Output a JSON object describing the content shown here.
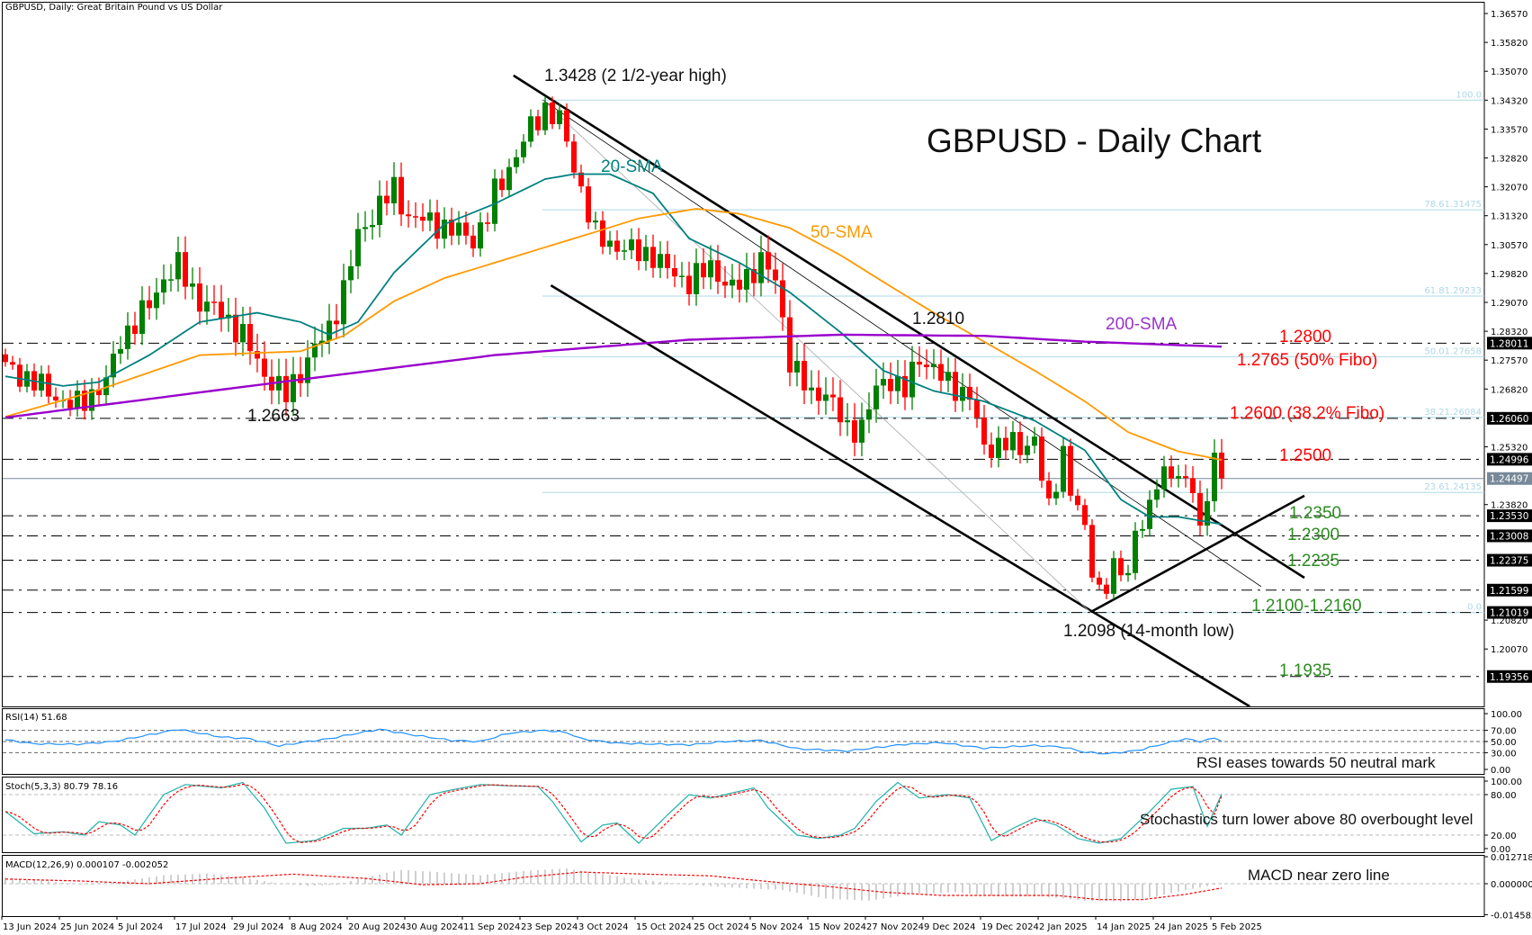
{
  "header": {
    "symbol_info": "GBPUSD, Daily:  Great Britain Pound vs US Dollar"
  },
  "chart_data": {
    "type": "candlestick",
    "title": "GBPUSD - Daily Chart",
    "colors": {
      "up": "#008000",
      "down": "#ff0000",
      "sma20": "#008080",
      "sma50": "#ff9900",
      "sma200": "#9900cc",
      "fibo": "#add8e6",
      "rsi": "#1e90ff",
      "stoch_main": "#20b2aa",
      "stoch_signal": "#ff0000",
      "macd_hist": "#c0c0c0",
      "macd_signal": "#ff0000"
    },
    "ylim": [
      1.1858,
      1.3657
    ],
    "y_ticks": [
      "1.36570",
      "1.35820",
      "1.35070",
      "1.34320",
      "1.33570",
      "1.32820",
      "1.32070",
      "1.31320",
      "1.30570",
      "1.29820",
      "1.29070",
      "1.28320",
      "1.27570",
      "1.26820",
      "1.25320",
      "1.23820",
      "1.20820",
      "1.20070"
    ],
    "x_ticks": [
      "13 Jun 2024",
      "25 Jun 2024",
      "5 Jul 2024",
      "17 Jul 2024",
      "29 Jul 2024",
      "8 Aug 2024",
      "20 Aug 2024",
      "30 Aug 2024",
      "11 Sep 2024",
      "23 Sep 2024",
      "3 Oct 2024",
      "15 Oct 2024",
      "25 Oct 2024",
      "5 Nov 2024",
      "15 Nov 2024",
      "27 Nov 2024",
      "9 Dec 2024",
      "19 Dec 2024",
      "2 Jan 2025",
      "14 Jan 2025",
      "24 Jan 2025",
      "5 Feb 2025"
    ],
    "bar_count": 170,
    "close_keypoints": [
      [
        0,
        1.274
      ],
      [
        4,
        1.27
      ],
      [
        8,
        1.265
      ],
      [
        10,
        1.264
      ],
      [
        14,
        1.27
      ],
      [
        16,
        1.281
      ],
      [
        20,
        1.29
      ],
      [
        22,
        1.297
      ],
      [
        24,
        1.3
      ],
      [
        27,
        1.291
      ],
      [
        30,
        1.288
      ],
      [
        33,
        1.282
      ],
      [
        36,
        1.272
      ],
      [
        39,
        1.2665
      ],
      [
        42,
        1.276
      ],
      [
        45,
        1.284
      ],
      [
        47,
        1.294
      ],
      [
        49,
        1.308
      ],
      [
        52,
        1.316
      ],
      [
        54,
        1.32
      ],
      [
        56,
        1.313
      ],
      [
        60,
        1.311
      ],
      [
        63,
        1.309
      ],
      [
        65,
        1.307
      ],
      [
        67,
        1.313
      ],
      [
        68,
        1.319
      ],
      [
        71,
        1.329
      ],
      [
        73,
        1.336
      ],
      [
        75,
        1.341
      ],
      [
        77,
        1.338
      ],
      [
        79,
        1.326
      ],
      [
        80,
        1.32
      ],
      [
        82,
        1.308
      ],
      [
        84,
        1.306
      ],
      [
        87,
        1.304
      ],
      [
        90,
        1.303
      ],
      [
        92,
        1.299
      ],
      [
        95,
        1.296
      ],
      [
        98,
        1.3
      ],
      [
        101,
        1.294
      ],
      [
        103,
        1.297
      ],
      [
        105,
        1.302
      ],
      [
        107,
        1.296
      ],
      [
        109,
        1.276
      ],
      [
        112,
        1.266
      ],
      [
        114,
        1.268
      ],
      [
        117,
        1.257
      ],
      [
        119,
        1.259
      ],
      [
        121,
        1.268
      ],
      [
        123,
        1.271
      ],
      [
        125,
        1.268
      ],
      [
        127,
        1.276
      ],
      [
        129,
        1.274
      ],
      [
        131,
        1.269
      ],
      [
        134,
        1.267
      ],
      [
        136,
        1.252
      ],
      [
        139,
        1.255
      ],
      [
        141,
        1.252
      ],
      [
        143,
        1.256
      ],
      [
        145,
        1.236
      ],
      [
        147,
        1.252
      ],
      [
        148,
        1.243
      ],
      [
        150,
        1.231
      ],
      [
        151,
        1.221
      ],
      [
        152,
        1.216
      ],
      [
        154,
        1.221
      ],
      [
        156,
        1.22
      ],
      [
        157,
        1.232
      ],
      [
        159,
        1.236
      ],
      [
        160,
        1.244
      ],
      [
        162,
        1.248
      ],
      [
        163,
        1.245
      ],
      [
        165,
        1.242
      ],
      [
        166,
        1.231
      ],
      [
        167,
        1.243
      ],
      [
        168,
        1.249
      ],
      [
        169,
        1.245
      ]
    ],
    "sma": [
      {
        "name": "20-SMA",
        "keypoints": [
          [
            0,
            1.2715
          ],
          [
            8,
            1.269
          ],
          [
            13,
            1.27
          ],
          [
            20,
            1.277
          ],
          [
            27,
            1.2856
          ],
          [
            35,
            1.288
          ],
          [
            41,
            1.2856
          ],
          [
            45,
            1.2823
          ],
          [
            49,
            1.2856
          ],
          [
            54,
            1.2984
          ],
          [
            61,
            1.311
          ],
          [
            68,
            1.3163
          ],
          [
            75,
            1.3227
          ],
          [
            79,
            1.324
          ],
          [
            84,
            1.324
          ],
          [
            90,
            1.319
          ],
          [
            95,
            1.3073
          ],
          [
            102,
            1.301
          ],
          [
            109,
            1.2933
          ],
          [
            116,
            1.283
          ],
          [
            122,
            1.273
          ],
          [
            129,
            1.2677
          ],
          [
            136,
            1.265
          ],
          [
            143,
            1.26
          ],
          [
            150,
            1.2523
          ],
          [
            155,
            1.2395
          ],
          [
            159,
            1.235
          ],
          [
            163,
            1.235
          ],
          [
            169,
            1.2331
          ]
        ]
      },
      {
        "name": "50-SMA",
        "keypoints": [
          [
            0,
            1.261
          ],
          [
            13,
            1.268
          ],
          [
            27,
            1.277
          ],
          [
            41,
            1.278
          ],
          [
            47,
            1.282
          ],
          [
            54,
            1.291
          ],
          [
            61,
            1.297
          ],
          [
            68,
            1.301
          ],
          [
            75,
            1.305
          ],
          [
            82,
            1.309
          ],
          [
            88,
            1.3125
          ],
          [
            96,
            1.315
          ],
          [
            102,
            1.3137
          ],
          [
            109,
            1.31
          ],
          [
            116,
            1.303
          ],
          [
            122,
            1.296
          ],
          [
            129,
            1.288
          ],
          [
            136,
            1.2805
          ],
          [
            143,
            1.273
          ],
          [
            150,
            1.265
          ],
          [
            156,
            1.257
          ],
          [
            163,
            1.252
          ],
          [
            169,
            1.2498
          ]
        ]
      },
      {
        "name": "200-SMA",
        "keypoints": [
          [
            0,
            1.2608
          ],
          [
            34,
            1.269
          ],
          [
            68,
            1.277
          ],
          [
            95,
            1.281
          ],
          [
            116,
            1.2823
          ],
          [
            136,
            1.282
          ],
          [
            150,
            1.2805
          ],
          [
            169,
            1.2792
          ]
        ]
      }
    ],
    "horizontal_levels": [
      "1.28011",
      "1.26060",
      "1.24996",
      "1.23530",
      "1.23008",
      "1.22375",
      "1.21599",
      "1.21019",
      "1.19356"
    ],
    "current_price": "1.24497",
    "fibonacci": [
      {
        "label": "100.0",
        "price": 1.3432
      },
      {
        "label": "78.61.31475",
        "price": 1.31475
      },
      {
        "label": "61.81.29233",
        "price": 1.29233
      },
      {
        "label": "50.01.27658",
        "price": 1.27658
      },
      {
        "label": "38.21.26084",
        "price": 1.26084
      },
      {
        "label": "23.61.24135",
        "price": 1.24135
      },
      {
        "label": "0.0",
        "price": 1.21019
      }
    ],
    "trendlines": [
      {
        "kind": "upper-channel",
        "from": [
          70.6,
          1.3496
        ],
        "to": [
          180.5,
          1.2192
        ],
        "weight": "thick"
      },
      {
        "kind": "lower-channel",
        "from": [
          75.8,
          1.2951
        ],
        "to": [
          172.9,
          1.1858
        ],
        "weight": "thick"
      },
      {
        "kind": "rising-support",
        "from": [
          150.8,
          1.2103
        ],
        "to": [
          180.5,
          1.2405
        ],
        "weight": "thick"
      },
      {
        "kind": "inner-trend",
        "from": [
          74.6,
          1.3433
        ],
        "to": [
          174.5,
          1.2169
        ],
        "weight": "thin"
      },
      {
        "kind": "fibo-diagonal",
        "from": [
          74.6,
          1.3433
        ],
        "to": [
          150.8,
          1.2102
        ],
        "weight": "grey"
      }
    ],
    "annotations": {
      "high": "1.3428 (2 1/2-year high)",
      "sma20": "20-SMA",
      "sma50": "50-SMA",
      "sma200": "200-SMA",
      "swing_1_2810": "1.2810",
      "low_1_2663": "1.2663",
      "res_1_2800": "1.2800",
      "res_1_2765": "1.2765 (50% Fibo)",
      "res_1_2600": "1.2600 (38.2% Fibo)",
      "res_1_2500": "1.2500",
      "sup_1_2350": "1.2350",
      "sup_1_2300": "1.2300",
      "sup_1_2235": "1.2235",
      "sup_zone": "1.2100-1.2160",
      "low_1_2098": "1.2098 (14-month low)",
      "sup_1_1935": "1.1935"
    },
    "rsi": {
      "label": "RSI(14) 51.68",
      "levels": [
        "100.00",
        "70.00",
        "50.00",
        "30.00",
        "0.00"
      ],
      "note": "RSI eases towards 50 neutral mark",
      "keypoints": [
        [
          0,
          53
        ],
        [
          4,
          46
        ],
        [
          10,
          45
        ],
        [
          15,
          50
        ],
        [
          20,
          62
        ],
        [
          24,
          72
        ],
        [
          30,
          58
        ],
        [
          34,
          55
        ],
        [
          38,
          42
        ],
        [
          42,
          50
        ],
        [
          45,
          55
        ],
        [
          49,
          65
        ],
        [
          52,
          72
        ],
        [
          56,
          63
        ],
        [
          62,
          52
        ],
        [
          66,
          50
        ],
        [
          70,
          65
        ],
        [
          75,
          70
        ],
        [
          78,
          66
        ],
        [
          80,
          55
        ],
        [
          85,
          47
        ],
        [
          95,
          44
        ],
        [
          100,
          50
        ],
        [
          105,
          52
        ],
        [
          110,
          37
        ],
        [
          117,
          33
        ],
        [
          125,
          45
        ],
        [
          130,
          48
        ],
        [
          136,
          38
        ],
        [
          143,
          43
        ],
        [
          147,
          40
        ],
        [
          150,
          31
        ],
        [
          153,
          28
        ],
        [
          156,
          32
        ],
        [
          158,
          36
        ],
        [
          161,
          46
        ],
        [
          164,
          55
        ],
        [
          166,
          50
        ],
        [
          168,
          56
        ],
        [
          169,
          52
        ]
      ]
    },
    "stochastic": {
      "label": "Stoch(5,3,3) 80.79 78.16",
      "levels": [
        "100.00",
        "80.00",
        "20.00",
        "0.00"
      ],
      "note": "Stochastics turn lower above 80 overbought level",
      "keypoints": [
        [
          0,
          55
        ],
        [
          4,
          22
        ],
        [
          8,
          25
        ],
        [
          11,
          20
        ],
        [
          13,
          40
        ],
        [
          16,
          35
        ],
        [
          18,
          20
        ],
        [
          22,
          80
        ],
        [
          25,
          95
        ],
        [
          30,
          90
        ],
        [
          33,
          98
        ],
        [
          36,
          60
        ],
        [
          39,
          8
        ],
        [
          43,
          12
        ],
        [
          47,
          30
        ],
        [
          50,
          30
        ],
        [
          53,
          35
        ],
        [
          55,
          20
        ],
        [
          59,
          80
        ],
        [
          62,
          87
        ],
        [
          66,
          95
        ],
        [
          70,
          93
        ],
        [
          74,
          92
        ],
        [
          76,
          70
        ],
        [
          80,
          10
        ],
        [
          83,
          35
        ],
        [
          85,
          38
        ],
        [
          88,
          8
        ],
        [
          92,
          50
        ],
        [
          95,
          80
        ],
        [
          98,
          75
        ],
        [
          102,
          85
        ],
        [
          104,
          90
        ],
        [
          106,
          60
        ],
        [
          110,
          20
        ],
        [
          113,
          15
        ],
        [
          116,
          20
        ],
        [
          118,
          30
        ],
        [
          121,
          70
        ],
        [
          124,
          98
        ],
        [
          127,
          75
        ],
        [
          131,
          80
        ],
        [
          134,
          75
        ],
        [
          137,
          12
        ],
        [
          140,
          30
        ],
        [
          143,
          45
        ],
        [
          146,
          35
        ],
        [
          149,
          15
        ],
        [
          152,
          8
        ],
        [
          155,
          15
        ],
        [
          159,
          55
        ],
        [
          162,
          88
        ],
        [
          165,
          92
        ],
        [
          167,
          33
        ],
        [
          169,
          80.79
        ]
      ]
    },
    "macd": {
      "label": "MACD(12,26,9) 0.000107 -0.002052",
      "levels": [
        "0.012718",
        "0.000000",
        "-0.014585"
      ],
      "note": "MACD near zero line",
      "hist_keypoints": [
        [
          0,
          0.003
        ],
        [
          8,
          0.0005
        ],
        [
          12,
          -0.0005
        ],
        [
          16,
          0.001
        ],
        [
          22,
          0.004
        ],
        [
          28,
          0.0048
        ],
        [
          33,
          0.003
        ],
        [
          38,
          0.0
        ],
        [
          42,
          -0.001
        ],
        [
          46,
          -0.0005
        ],
        [
          50,
          0.003
        ],
        [
          55,
          0.0065
        ],
        [
          60,
          0.0055
        ],
        [
          66,
          0.004
        ],
        [
          72,
          0.006
        ],
        [
          78,
          0.0072
        ],
        [
          82,
          0.005
        ],
        [
          88,
          0.002
        ],
        [
          95,
          -0.0005
        ],
        [
          102,
          -0.002
        ],
        [
          108,
          -0.003
        ],
        [
          114,
          -0.007
        ],
        [
          120,
          -0.008
        ],
        [
          126,
          -0.005
        ],
        [
          132,
          -0.004
        ],
        [
          138,
          -0.006
        ],
        [
          144,
          -0.006
        ],
        [
          150,
          -0.008
        ],
        [
          155,
          -0.0085
        ],
        [
          160,
          -0.006
        ],
        [
          164,
          -0.003
        ],
        [
          169,
          0.000107
        ]
      ],
      "signal_keypoints": [
        [
          0,
          0.0022
        ],
        [
          10,
          0.0013
        ],
        [
          20,
          0.0
        ],
        [
          30,
          0.0025
        ],
        [
          40,
          0.0045
        ],
        [
          50,
          0.0025
        ],
        [
          58,
          -0.0005
        ],
        [
          66,
          0.0
        ],
        [
          72,
          0.003
        ],
        [
          80,
          0.0055
        ],
        [
          88,
          0.0046
        ],
        [
          98,
          0.0037
        ],
        [
          106,
          0.001
        ],
        [
          114,
          -0.0012
        ],
        [
          122,
          -0.004
        ],
        [
          130,
          -0.0055
        ],
        [
          138,
          -0.0055
        ],
        [
          146,
          -0.0055
        ],
        [
          152,
          -0.0075
        ],
        [
          158,
          -0.0075
        ],
        [
          164,
          -0.005
        ],
        [
          169,
          -0.002052
        ]
      ]
    }
  }
}
